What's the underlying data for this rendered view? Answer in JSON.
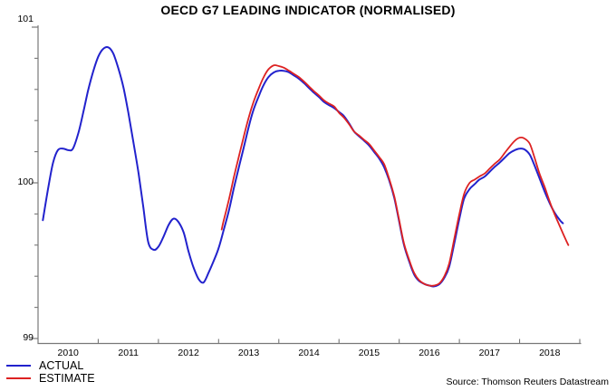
{
  "title": "OECD G7 LEADING INDICATOR (NORMALISED)",
  "source": "Source: Thomson Reuters Datastream",
  "legend": [
    {
      "label": "ACTUAL",
      "color": "#2222cd"
    },
    {
      "label": "ESTIMATE",
      "color": "#dd2222"
    }
  ],
  "colors": {
    "actual": "#2222cd",
    "estimate": "#dd2222",
    "axis": "#787878",
    "text": "#000000",
    "background": "#ffffff"
  },
  "chart_data": {
    "type": "line",
    "title": "OECD G7 LEADING INDICATOR (NORMALISED)",
    "xlabel": "",
    "ylabel": "",
    "grid": false,
    "legend_position": "bottom-left",
    "legend": [
      "ACTUAL",
      "ESTIMATE"
    ],
    "x_axis": {
      "range": [
        2010,
        2019
      ],
      "year_labels": [
        "2010",
        "2011",
        "2012",
        "2013",
        "2014",
        "2015",
        "2016",
        "2017",
        "2018"
      ],
      "boundary_ticks": [
        2011,
        2012,
        2013,
        2014,
        2015,
        2016,
        2017,
        2018,
        2019
      ]
    },
    "y_axis": {
      "range": [
        99,
        101
      ],
      "major_ticks": [
        {
          "value": 101,
          "label": "101"
        },
        {
          "value": 100,
          "label": "100"
        },
        {
          "value": 99,
          "label": "99"
        }
      ],
      "minor_ticks": [
        99.2,
        99.4,
        99.6,
        99.8,
        100.2,
        100.4,
        100.6,
        100.8
      ]
    },
    "series": [
      {
        "name": "ACTUAL",
        "color": "#2222cd",
        "width": 2,
        "points": [
          [
            2010.08,
            99.76
          ],
          [
            2010.17,
            99.97
          ],
          [
            2010.25,
            100.13
          ],
          [
            2010.33,
            100.21
          ],
          [
            2010.42,
            100.22
          ],
          [
            2010.5,
            100.21
          ],
          [
            2010.58,
            100.22
          ],
          [
            2010.67,
            100.32
          ],
          [
            2010.75,
            100.45
          ],
          [
            2010.83,
            100.59
          ],
          [
            2010.92,
            100.72
          ],
          [
            2011.0,
            100.81
          ],
          [
            2011.08,
            100.86
          ],
          [
            2011.17,
            100.87
          ],
          [
            2011.25,
            100.83
          ],
          [
            2011.33,
            100.74
          ],
          [
            2011.42,
            100.61
          ],
          [
            2011.5,
            100.45
          ],
          [
            2011.58,
            100.27
          ],
          [
            2011.67,
            100.06
          ],
          [
            2011.75,
            99.84
          ],
          [
            2011.83,
            99.62
          ],
          [
            2011.92,
            99.57
          ],
          [
            2012.0,
            99.59
          ],
          [
            2012.08,
            99.65
          ],
          [
            2012.17,
            99.73
          ],
          [
            2012.25,
            99.77
          ],
          [
            2012.33,
            99.75
          ],
          [
            2012.42,
            99.68
          ],
          [
            2012.5,
            99.56
          ],
          [
            2012.58,
            99.46
          ],
          [
            2012.67,
            99.38
          ],
          [
            2012.75,
            99.36
          ],
          [
            2012.83,
            99.42
          ],
          [
            2012.92,
            99.5
          ],
          [
            2013.0,
            99.58
          ],
          [
            2013.08,
            99.69
          ],
          [
            2013.17,
            99.82
          ],
          [
            2013.25,
            99.96
          ],
          [
            2013.33,
            100.09
          ],
          [
            2013.42,
            100.23
          ],
          [
            2013.5,
            100.36
          ],
          [
            2013.58,
            100.47
          ],
          [
            2013.67,
            100.56
          ],
          [
            2013.75,
            100.63
          ],
          [
            2013.83,
            100.68
          ],
          [
            2013.92,
            100.71
          ],
          [
            2014.0,
            100.72
          ],
          [
            2014.08,
            100.72
          ],
          [
            2014.17,
            100.71
          ],
          [
            2014.25,
            100.69
          ],
          [
            2014.33,
            100.67
          ],
          [
            2014.42,
            100.64
          ],
          [
            2014.5,
            100.61
          ],
          [
            2014.58,
            100.58
          ],
          [
            2014.67,
            100.55
          ],
          [
            2014.75,
            100.52
          ],
          [
            2014.83,
            100.5
          ],
          [
            2014.92,
            100.48
          ],
          [
            2015.0,
            100.455
          ],
          [
            2015.08,
            100.43
          ],
          [
            2015.17,
            100.38
          ],
          [
            2015.25,
            100.33
          ],
          [
            2015.33,
            100.3
          ],
          [
            2015.42,
            100.27
          ],
          [
            2015.5,
            100.24
          ],
          [
            2015.58,
            100.2
          ],
          [
            2015.67,
            100.155
          ],
          [
            2015.75,
            100.1
          ],
          [
            2015.83,
            100.02
          ],
          [
            2015.92,
            99.9
          ],
          [
            2016.0,
            99.75
          ],
          [
            2016.08,
            99.6
          ],
          [
            2016.17,
            99.49
          ],
          [
            2016.25,
            99.41
          ],
          [
            2016.33,
            99.37
          ],
          [
            2016.42,
            99.35
          ],
          [
            2016.5,
            99.34
          ],
          [
            2016.58,
            99.335
          ],
          [
            2016.67,
            99.35
          ],
          [
            2016.75,
            99.39
          ],
          [
            2016.83,
            99.46
          ],
          [
            2016.92,
            99.62
          ],
          [
            2017.0,
            99.77
          ],
          [
            2017.08,
            99.9
          ],
          [
            2017.17,
            99.96
          ],
          [
            2017.25,
            99.99
          ],
          [
            2017.33,
            100.02
          ],
          [
            2017.42,
            100.04
          ],
          [
            2017.5,
            100.07
          ],
          [
            2017.58,
            100.1
          ],
          [
            2017.67,
            100.13
          ],
          [
            2017.75,
            100.16
          ],
          [
            2017.83,
            100.19
          ],
          [
            2017.92,
            100.21
          ],
          [
            2018.0,
            100.22
          ],
          [
            2018.08,
            100.215
          ],
          [
            2018.17,
            100.18
          ],
          [
            2018.25,
            100.11
          ],
          [
            2018.33,
            100.03
          ],
          [
            2018.42,
            99.94
          ],
          [
            2018.5,
            99.87
          ],
          [
            2018.58,
            99.81
          ],
          [
            2018.67,
            99.76
          ],
          [
            2018.72,
            99.74
          ]
        ]
      },
      {
        "name": "ESTIMATE",
        "color": "#dd2222",
        "width": 1.8,
        "points": [
          [
            2013.05,
            99.7
          ],
          [
            2013.08,
            99.75
          ],
          [
            2013.17,
            99.89
          ],
          [
            2013.25,
            100.03
          ],
          [
            2013.33,
            100.16
          ],
          [
            2013.42,
            100.3
          ],
          [
            2013.5,
            100.42
          ],
          [
            2013.58,
            100.52
          ],
          [
            2013.67,
            100.61
          ],
          [
            2013.75,
            100.68
          ],
          [
            2013.83,
            100.73
          ],
          [
            2013.92,
            100.755
          ],
          [
            2014.0,
            100.75
          ],
          [
            2014.08,
            100.74
          ],
          [
            2014.17,
            100.72
          ],
          [
            2014.25,
            100.7
          ],
          [
            2014.33,
            100.68
          ],
          [
            2014.42,
            100.65
          ],
          [
            2014.5,
            100.62
          ],
          [
            2014.58,
            100.59
          ],
          [
            2014.67,
            100.56
          ],
          [
            2014.75,
            100.53
          ],
          [
            2014.83,
            100.51
          ],
          [
            2014.92,
            100.49
          ],
          [
            2015.0,
            100.45
          ],
          [
            2015.08,
            100.42
          ],
          [
            2015.17,
            100.375
          ],
          [
            2015.25,
            100.33
          ],
          [
            2015.33,
            100.305
          ],
          [
            2015.42,
            100.275
          ],
          [
            2015.5,
            100.25
          ],
          [
            2015.58,
            100.21
          ],
          [
            2015.67,
            100.165
          ],
          [
            2015.75,
            100.12
          ],
          [
            2015.83,
            100.03
          ],
          [
            2015.92,
            99.91
          ],
          [
            2016.0,
            99.76
          ],
          [
            2016.08,
            99.61
          ],
          [
            2016.17,
            99.5
          ],
          [
            2016.25,
            99.42
          ],
          [
            2016.33,
            99.375
          ],
          [
            2016.42,
            99.35
          ],
          [
            2016.5,
            99.34
          ],
          [
            2016.58,
            99.34
          ],
          [
            2016.67,
            99.355
          ],
          [
            2016.75,
            99.4
          ],
          [
            2016.83,
            99.48
          ],
          [
            2016.92,
            99.65
          ],
          [
            2017.0,
            99.8
          ],
          [
            2017.08,
            99.93
          ],
          [
            2017.17,
            100.0
          ],
          [
            2017.25,
            100.02
          ],
          [
            2017.33,
            100.04
          ],
          [
            2017.42,
            100.06
          ],
          [
            2017.5,
            100.09
          ],
          [
            2017.58,
            100.12
          ],
          [
            2017.67,
            100.15
          ],
          [
            2017.75,
            100.19
          ],
          [
            2017.83,
            100.23
          ],
          [
            2017.92,
            100.27
          ],
          [
            2018.0,
            100.29
          ],
          [
            2018.08,
            100.285
          ],
          [
            2018.17,
            100.25
          ],
          [
            2018.25,
            100.16
          ],
          [
            2018.33,
            100.06
          ],
          [
            2018.42,
            99.97
          ],
          [
            2018.5,
            99.88
          ],
          [
            2018.58,
            99.8
          ],
          [
            2018.67,
            99.72
          ],
          [
            2018.75,
            99.65
          ],
          [
            2018.81,
            99.6
          ]
        ]
      }
    ]
  }
}
